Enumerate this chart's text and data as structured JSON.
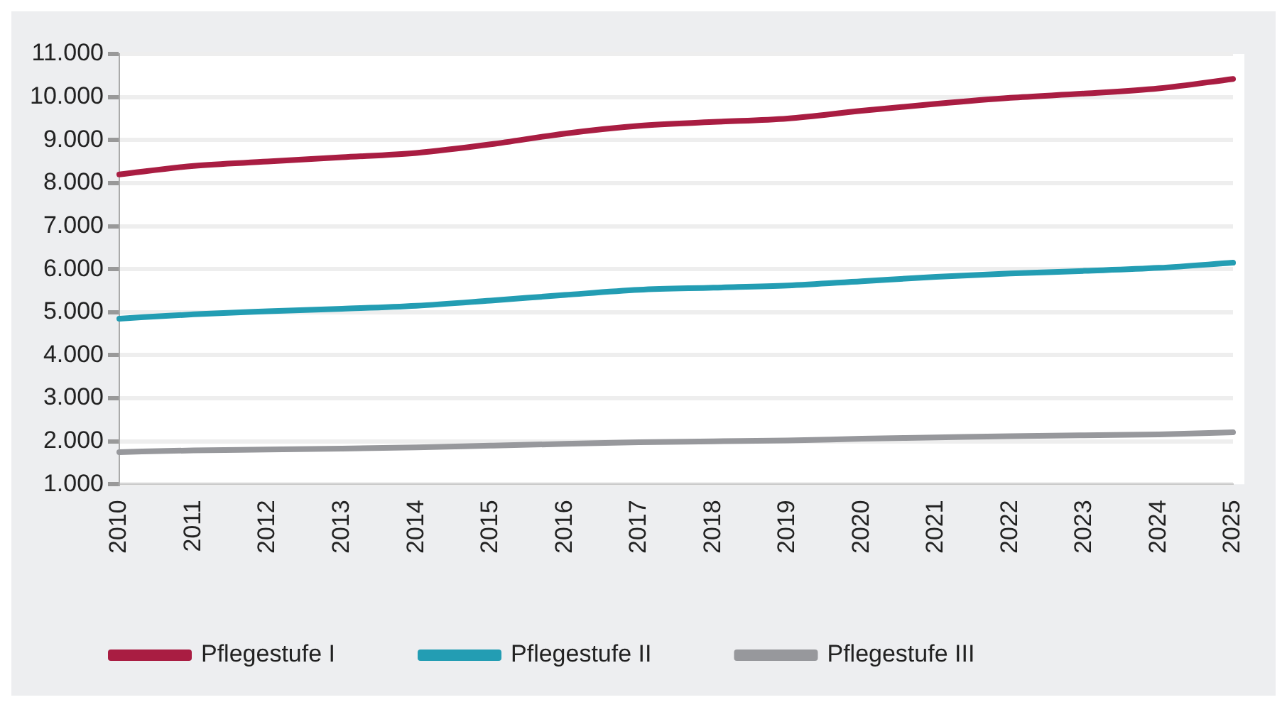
{
  "chart_data": {
    "type": "line",
    "categories": [
      "2010",
      "2011",
      "2012",
      "2013",
      "2014",
      "2015",
      "2016",
      "2017",
      "2018",
      "2019",
      "2020",
      "2021",
      "2022",
      "2023",
      "2024",
      "2025"
    ],
    "series": [
      {
        "name": "Pflegestufe I",
        "color": "#a91d42",
        "values": [
          8200,
          8400,
          8500,
          8600,
          8700,
          8900,
          9150,
          9330,
          9420,
          9500,
          9680,
          9840,
          9980,
          10080,
          10200,
          10420
        ]
      },
      {
        "name": "Pflegestufe II",
        "color": "#239db3",
        "values": [
          4850,
          4950,
          5020,
          5080,
          5150,
          5270,
          5400,
          5520,
          5570,
          5620,
          5720,
          5820,
          5900,
          5960,
          6030,
          6150
        ]
      },
      {
        "name": "Pflegestufe III",
        "color": "#97989c",
        "values": [
          1750,
          1790,
          1810,
          1830,
          1860,
          1900,
          1940,
          1980,
          2000,
          2020,
          2060,
          2090,
          2120,
          2140,
          2160,
          2210
        ]
      }
    ],
    "ylim": [
      1000,
      11000
    ],
    "yticks": [
      {
        "value": 1000,
        "label": "1.000"
      },
      {
        "value": 2000,
        "label": "2.000"
      },
      {
        "value": 3000,
        "label": "3.000"
      },
      {
        "value": 4000,
        "label": "4.000"
      },
      {
        "value": 5000,
        "label": "5.000"
      },
      {
        "value": 6000,
        "label": "6.000"
      },
      {
        "value": 7000,
        "label": "7.000"
      },
      {
        "value": 8000,
        "label": "8.000"
      },
      {
        "value": 9000,
        "label": "9.000"
      },
      {
        "value": 10000,
        "label": "10.000"
      },
      {
        "value": 11000,
        "label": "11.000"
      }
    ],
    "grid": "y",
    "legend": "bottom",
    "marker": "none",
    "line_style": "solid"
  }
}
